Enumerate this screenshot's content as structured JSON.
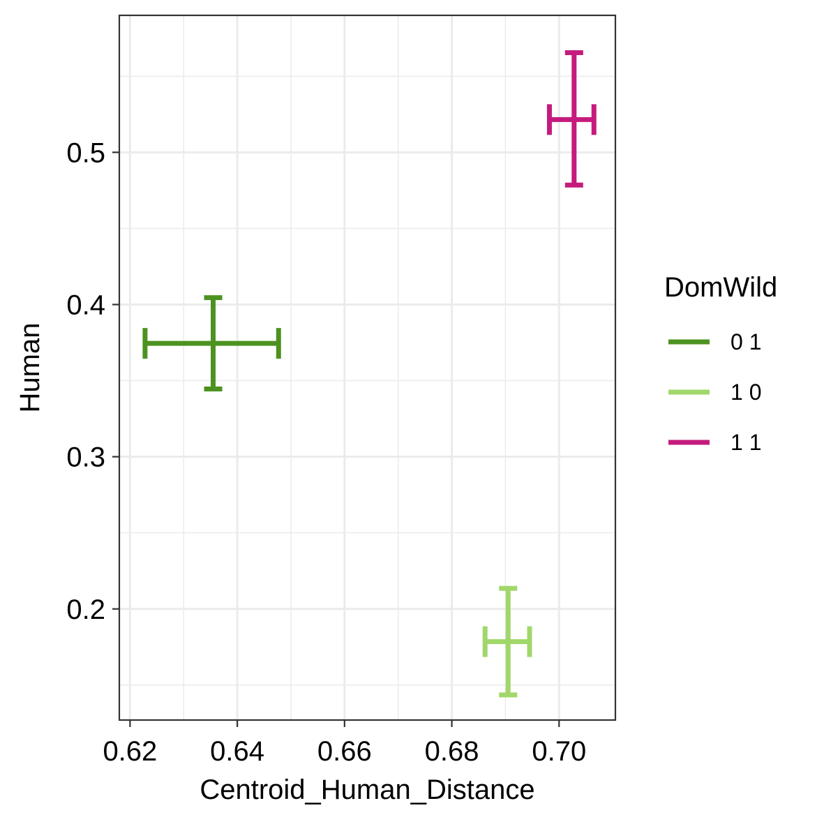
{
  "chart_data": {
    "type": "errorbar",
    "xlabel": "Centroid_Human_Distance",
    "ylabel": "Human",
    "xlim": [
      0.618,
      0.7105
    ],
    "ylim": [
      0.127,
      0.59
    ],
    "x_ticks": [
      0.62,
      0.64,
      0.66,
      0.68,
      0.7
    ],
    "x_tick_labels": [
      "0.62",
      "0.64",
      "0.66",
      "0.68",
      "0.70"
    ],
    "x_minor_ticks": [
      0.63,
      0.65,
      0.67,
      0.69
    ],
    "y_ticks": [
      0.2,
      0.3,
      0.4,
      0.5
    ],
    "y_tick_labels": [
      "0.2",
      "0.3",
      "0.4",
      "0.5"
    ],
    "y_minor_ticks": [
      0.15,
      0.25,
      0.35,
      0.45,
      0.55
    ],
    "grid": true,
    "legend": {
      "title": "DomWild",
      "position": "right"
    },
    "series": [
      {
        "name": "0 1",
        "color": "#4D9221",
        "x": 0.6355,
        "y": 0.3745,
        "xmin": 0.6228,
        "xmax": 0.6477,
        "ymin": 0.3445,
        "ymax": 0.4045
      },
      {
        "name": "1 0",
        "color": "#A1D76A",
        "x": 0.6905,
        "y": 0.1785,
        "xmin": 0.6862,
        "xmax": 0.6945,
        "ymin": 0.1435,
        "ymax": 0.2135
      },
      {
        "name": "1 1",
        "color": "#C51B7D",
        "x": 0.7028,
        "y": 0.5215,
        "xmin": 0.6982,
        "xmax": 0.7065,
        "ymin": 0.4785,
        "ymax": 0.5655
      }
    ]
  }
}
